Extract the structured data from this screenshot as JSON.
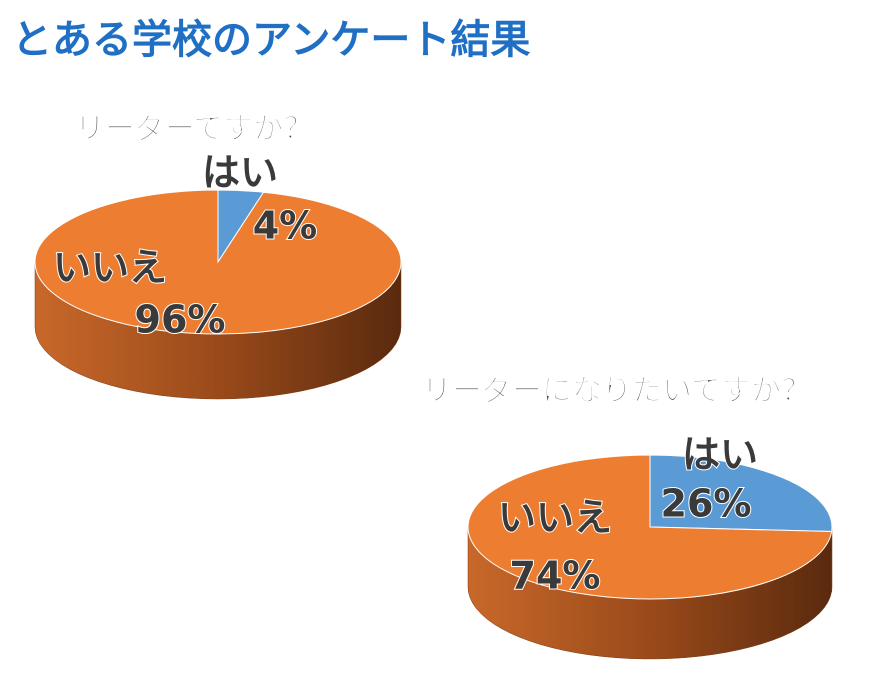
{
  "title": "とある学校のアンケート結果",
  "chart_data": [
    {
      "type": "pie",
      "title": "リーダーですか？",
      "categories": [
        "はい",
        "いいえ"
      ],
      "values": [
        4,
        96
      ],
      "value_labels": [
        "4%",
        "96%"
      ],
      "colors": [
        "#5b9bd5",
        "#ed7d31"
      ]
    },
    {
      "type": "pie",
      "title": "リーダーになりたいですか？",
      "categories": [
        "はい",
        "いいえ"
      ],
      "values": [
        26,
        74
      ],
      "value_labels": [
        "26%",
        "74%"
      ],
      "colors": [
        "#5b9bd5",
        "#ed7d31"
      ]
    }
  ]
}
